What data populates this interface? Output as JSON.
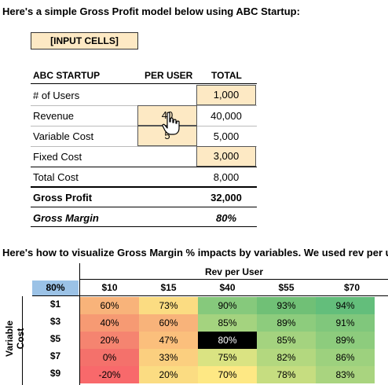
{
  "intro": "Here's a simple Gross Profit model below using ABC Startup:",
  "legend": "[INPUT CELLS]",
  "model": {
    "headers": {
      "company": "ABC STARTUP",
      "per_user": "PER USER",
      "total": "TOTAL"
    },
    "rows": {
      "users": {
        "label": "# of Users",
        "per_user": "",
        "total": "1,000"
      },
      "revenue": {
        "label": "Revenue",
        "per_user": "40",
        "total": "40,000"
      },
      "varcost": {
        "label": "Variable Cost",
        "per_user": "5",
        "total": "5,000"
      },
      "fixed": {
        "label": "Fixed Cost",
        "per_user": "",
        "total": "3,000"
      },
      "totcost": {
        "label": "Total Cost",
        "per_user": "",
        "total": "8,000"
      },
      "gp": {
        "label": "Gross Profit",
        "per_user": "",
        "total": "32,000"
      },
      "gm": {
        "label": "Gross Margin",
        "per_user": "",
        "total": "80%"
      }
    }
  },
  "sensitivity": {
    "intro": "Here's how to visualize Gross Margin % impacts by variables. We used rev per us",
    "corner": "80%",
    "col_title": "Rev per User",
    "row_title": "Variable Cost",
    "columns": [
      "$10",
      "$15",
      "$40",
      "$55",
      "$70"
    ],
    "rows": [
      {
        "label": "$1",
        "cells": [
          "60%",
          "73%",
          "90%",
          "93%",
          "94%"
        ]
      },
      {
        "label": "$3",
        "cells": [
          "40%",
          "60%",
          "85%",
          "89%",
          "91%"
        ]
      },
      {
        "label": "$5",
        "cells": [
          "20%",
          "47%",
          "80%",
          "85%",
          "89%"
        ]
      },
      {
        "label": "$7",
        "cells": [
          "0%",
          "33%",
          "75%",
          "82%",
          "86%"
        ]
      },
      {
        "label": "$9",
        "cells": [
          "-20%",
          "20%",
          "70%",
          "78%",
          "83%"
        ]
      }
    ],
    "highlight": {
      "row": 2,
      "col": 2
    },
    "colors": {
      "header_fill": "#9bc2e6",
      "input_fill": "#fde9c4",
      "highlight_fill": "#000000",
      "cell_fills": [
        [
          "#f8b37a",
          "#fbdc82",
          "#86c97c",
          "#70c076",
          "#63be7b"
        ],
        [
          "#f69a73",
          "#f8b37a",
          "#a4d37f",
          "#8dcc7d",
          "#80c77c"
        ],
        [
          "#f58470",
          "#fbbf7c",
          "#000000",
          "#a4d37f",
          "#8dcc7d"
        ],
        [
          "#f4716b",
          "#fbcf7f",
          "#dae382",
          "#b3d87f",
          "#9dd17e"
        ],
        [
          "#f8696b",
          "#fbdc82",
          "#fee884",
          "#c6dd80",
          "#a9d47f"
        ]
      ]
    }
  },
  "icons": {
    "cursor": "pointer-hand-icon"
  }
}
